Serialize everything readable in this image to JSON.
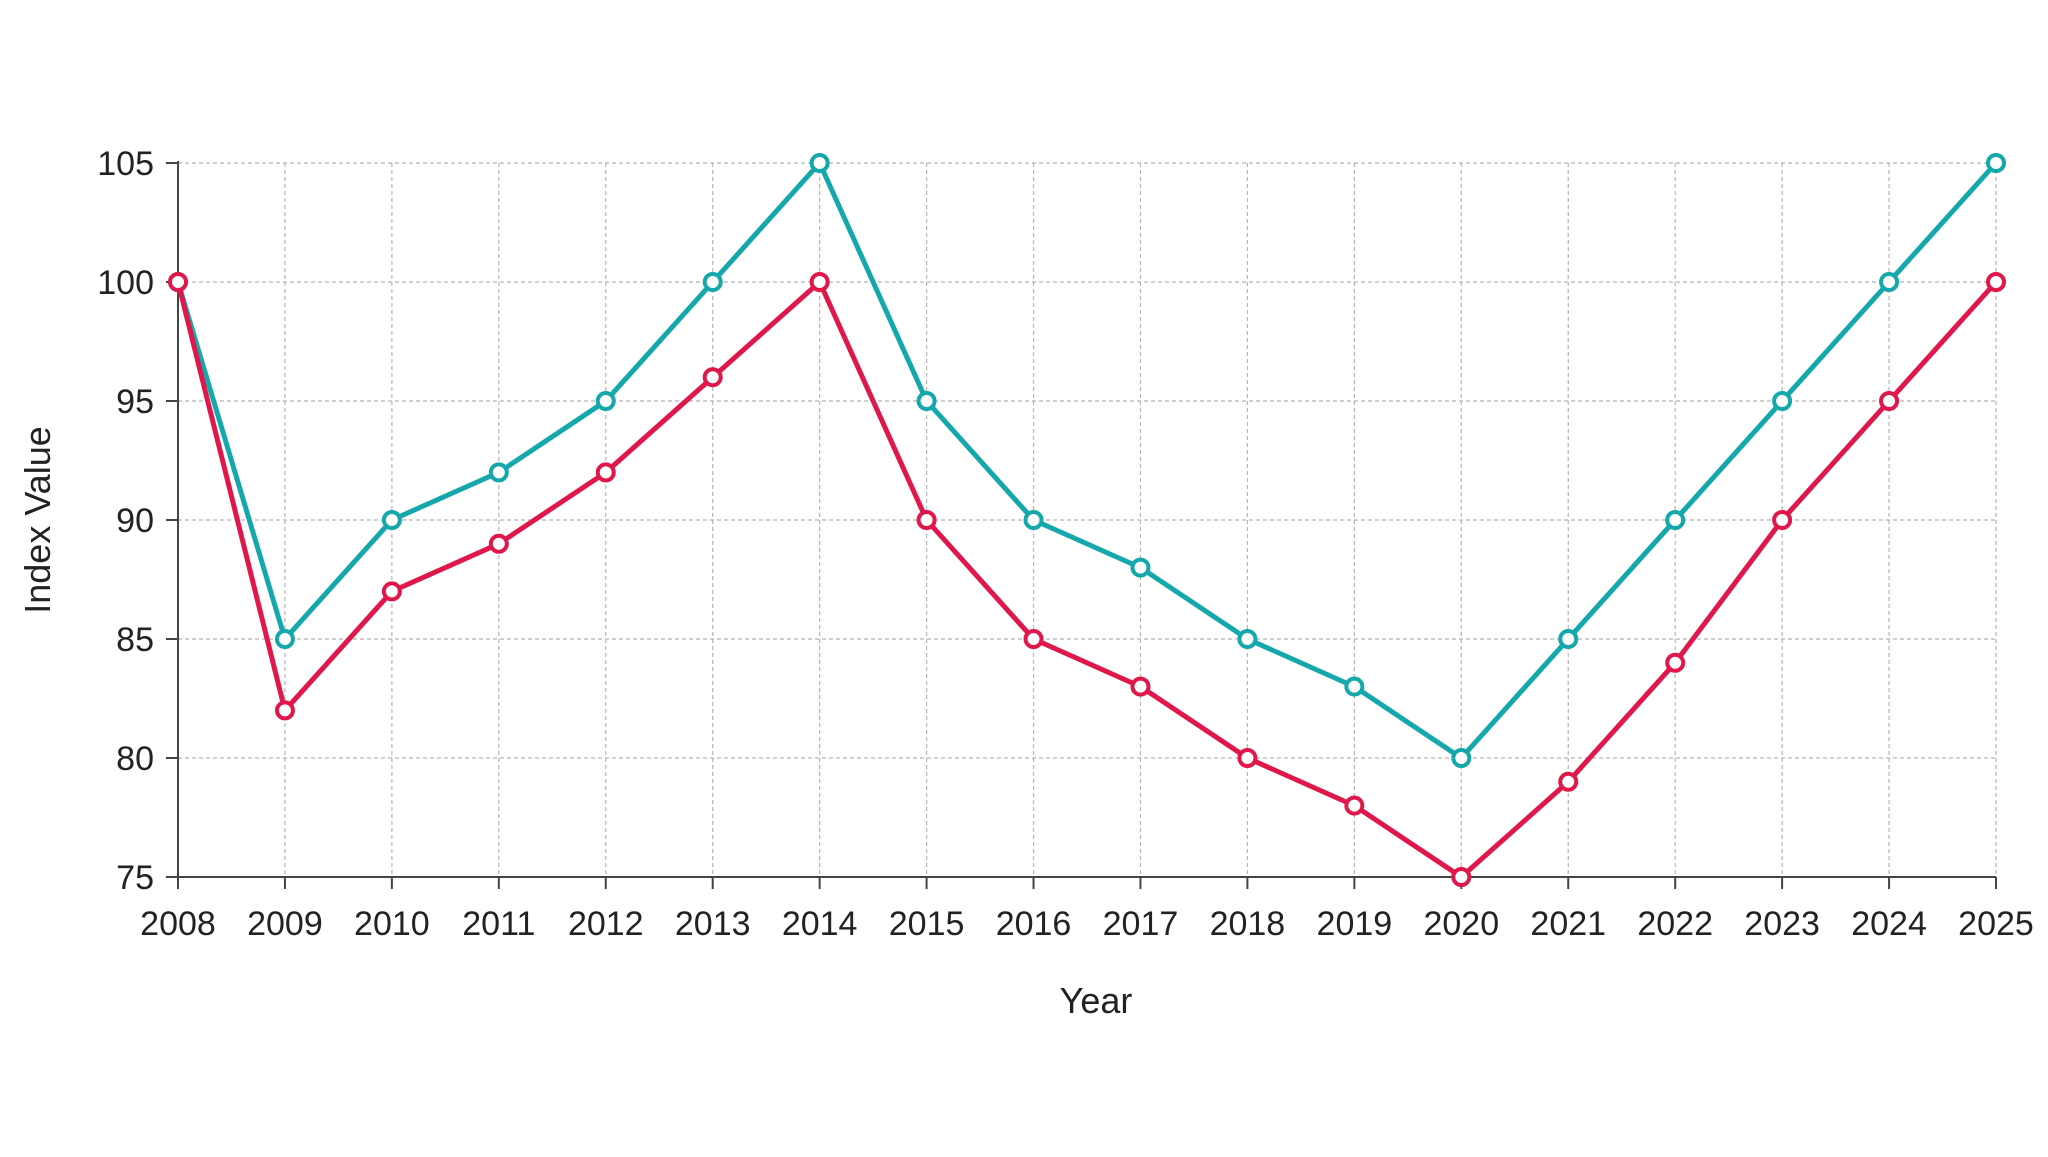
{
  "chart_data": {
    "type": "line",
    "title": "",
    "xlabel": "Year",
    "ylabel": "Index Value",
    "x": [
      "2008",
      "2009",
      "2010",
      "2011",
      "2012",
      "2013",
      "2014",
      "2015",
      "2016",
      "2017",
      "2018",
      "2019",
      "2020",
      "2021",
      "2022",
      "2023",
      "2024",
      "2025"
    ],
    "ylim": [
      75,
      105
    ],
    "yticks": [
      75,
      80,
      85,
      90,
      95,
      100,
      105
    ],
    "grid": true,
    "series": [
      {
        "color": "#14a8ac",
        "values": [
          100,
          85,
          90,
          92,
          95,
          100,
          105,
          95,
          90,
          88,
          85,
          83,
          80,
          85,
          90,
          95,
          100,
          105
        ]
      },
      {
        "color": "#e0174a",
        "values": [
          100,
          82,
          87,
          89,
          92,
          96,
          100,
          90,
          85,
          83,
          80,
          78,
          75,
          79,
          84,
          90,
          95,
          100
        ]
      }
    ]
  }
}
